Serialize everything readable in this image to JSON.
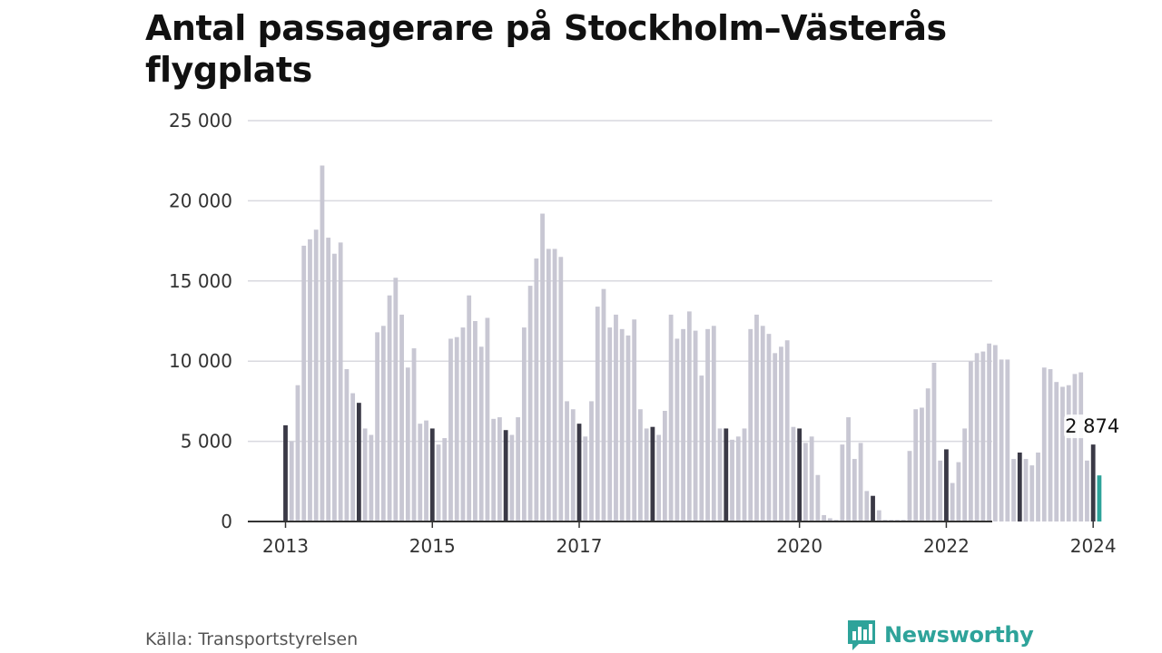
{
  "title": "Antal passagerare på Stockholm–Västerås flygplats",
  "source": "Källa: Transportstyrelsen",
  "brand": "Newsworthy",
  "colors": {
    "bar": "#c8c7d3",
    "january_bar": "#3a3946",
    "latest_bar": "#2ea39a",
    "grid": "#d9d9df",
    "axis": "#333333",
    "brand": "#2ea39a"
  },
  "chart_data": {
    "type": "bar",
    "ylim": [
      0,
      25000
    ],
    "yticks": [
      0,
      5000,
      10000,
      15000,
      20000,
      25000
    ],
    "ytick_labels": [
      "0",
      "5 000",
      "10 000",
      "15 000",
      "20 000",
      "25 000"
    ],
    "grid": true,
    "x_start": "2013-01",
    "xtick_labels": [
      {
        "label": "2013",
        "month_index": 0
      },
      {
        "label": "2015",
        "month_index": 24
      },
      {
        "label": "2017",
        "month_index": 48
      },
      {
        "label": "2020",
        "month_index": 84
      },
      {
        "label": "2022",
        "month_index": 108
      },
      {
        "label": "2024",
        "month_index": 132
      }
    ],
    "highlight": "January of each year shown in dark; latest month highlighted",
    "annotation": {
      "month_index": 132,
      "text": "2 874"
    },
    "values": [
      6000,
      5000,
      8500,
      17200,
      17600,
      18200,
      22200,
      17700,
      16700,
      17400,
      9500,
      8000,
      7400,
      5800,
      5400,
      11800,
      12200,
      14100,
      15200,
      12900,
      9600,
      10800,
      6100,
      6300,
      5800,
      4800,
      5200,
      11400,
      11500,
      12100,
      14100,
      12500,
      10900,
      12700,
      6400,
      6500,
      5700,
      5400,
      6500,
      12100,
      14700,
      16400,
      19200,
      17000,
      17000,
      16500,
      7500,
      7000,
      6100,
      5300,
      7500,
      13400,
      14500,
      12100,
      12900,
      12000,
      11600,
      12600,
      7000,
      5800,
      5900,
      5400,
      6900,
      12900,
      11400,
      12000,
      13100,
      11900,
      9100,
      12000,
      12200,
      5800,
      5800,
      5100,
      5300,
      5800,
      12000,
      12900,
      12200,
      11700,
      10500,
      10900,
      11300,
      5900,
      5800,
      4900,
      5300,
      2900,
      400,
      200,
      100,
      4800,
      6500,
      3900,
      4900,
      1900,
      1600,
      700,
      100,
      100,
      100,
      100,
      4400,
      7000,
      7100,
      8300,
      9900,
      3800,
      4500,
      2400,
      3700,
      5800,
      10000,
      10500,
      10600,
      11100,
      11000,
      10100,
      10100,
      3900,
      4300,
      3900,
      3500,
      4300,
      9600,
      9500,
      8700,
      8400,
      8500,
      9200,
      9300,
      3800,
      4800,
      2874
    ]
  }
}
